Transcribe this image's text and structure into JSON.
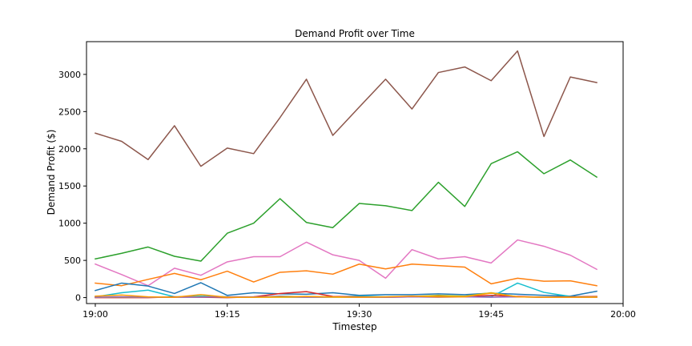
{
  "chart_data": {
    "type": "line",
    "title": "Demand Profit over Time",
    "xlabel": "Timestep",
    "ylabel": "Demand Profit ($)",
    "x_unit": "minutes past 19:00",
    "xlim": [
      -1,
      60
    ],
    "ylim": [
      -80,
      3440
    ],
    "xticks": [
      {
        "value": 0,
        "label": "19:00"
      },
      {
        "value": 15,
        "label": "19:15"
      },
      {
        "value": 30,
        "label": "19:30"
      },
      {
        "value": 45,
        "label": "19:45"
      },
      {
        "value": 60,
        "label": "20:00"
      }
    ],
    "yticks": [
      0,
      500,
      1000,
      1500,
      2000,
      2500,
      3000
    ],
    "grid": false,
    "x": [
      0,
      3,
      6,
      9,
      12,
      15,
      18,
      21,
      24,
      27,
      30,
      33,
      36,
      39,
      42,
      45,
      48,
      51,
      54,
      57
    ],
    "series": [
      {
        "color": "#8c564b",
        "values": [
          2210,
          2100,
          1855,
          2310,
          1765,
          2010,
          1935,
          2420,
          2935,
          2180,
          2560,
          2935,
          2535,
          3025,
          3100,
          2915,
          3315,
          2165,
          2965,
          2890
        ]
      },
      {
        "color": "#2ca02c",
        "values": [
          520,
          595,
          680,
          555,
          490,
          865,
          1000,
          1330,
          1010,
          940,
          1265,
          1235,
          1170,
          1550,
          1225,
          1800,
          1960,
          1665,
          1850,
          1620
        ]
      },
      {
        "color": "#e377c2",
        "values": [
          450,
          310,
          160,
          395,
          300,
          480,
          550,
          550,
          745,
          575,
          500,
          260,
          645,
          520,
          550,
          465,
          775,
          690,
          570,
          380
        ]
      },
      {
        "color": "#ff7f0e",
        "values": [
          195,
          160,
          245,
          325,
          240,
          355,
          210,
          340,
          360,
          315,
          450,
          385,
          450,
          430,
          410,
          185,
          260,
          220,
          225,
          160
        ]
      },
      {
        "color": "#1f77b4",
        "values": [
          95,
          195,
          155,
          55,
          200,
          30,
          65,
          50,
          45,
          65,
          30,
          40,
          40,
          50,
          40,
          60,
          45,
          30,
          20,
          85
        ]
      },
      {
        "color": "#17becf",
        "values": [
          10,
          65,
          100,
          10,
          20,
          10,
          5,
          20,
          10,
          10,
          20,
          10,
          15,
          10,
          15,
          10,
          195,
          70,
          15,
          10
        ]
      },
      {
        "color": "#d62728",
        "values": [
          0,
          0,
          0,
          10,
          5,
          0,
          10,
          55,
          80,
          15,
          10,
          5,
          10,
          20,
          10,
          30,
          15,
          5,
          10,
          15
        ]
      },
      {
        "color": "#bcbd22",
        "values": [
          5,
          5,
          5,
          5,
          10,
          5,
          5,
          5,
          5,
          5,
          5,
          5,
          15,
          30,
          20,
          65,
          10,
          5,
          5,
          10
        ]
      },
      {
        "color": "#9467bd",
        "values": [
          5,
          10,
          5,
          5,
          5,
          10,
          10,
          15,
          5,
          10,
          5,
          5,
          10,
          5,
          10,
          5,
          10,
          5,
          5,
          5
        ]
      },
      {
        "color": "#ff9900",
        "values": [
          20,
          35,
          10,
          5,
          40,
          5,
          5,
          10,
          15,
          10,
          5,
          10,
          20,
          10,
          10,
          60,
          10,
          5,
          5,
          5
        ]
      }
    ]
  }
}
